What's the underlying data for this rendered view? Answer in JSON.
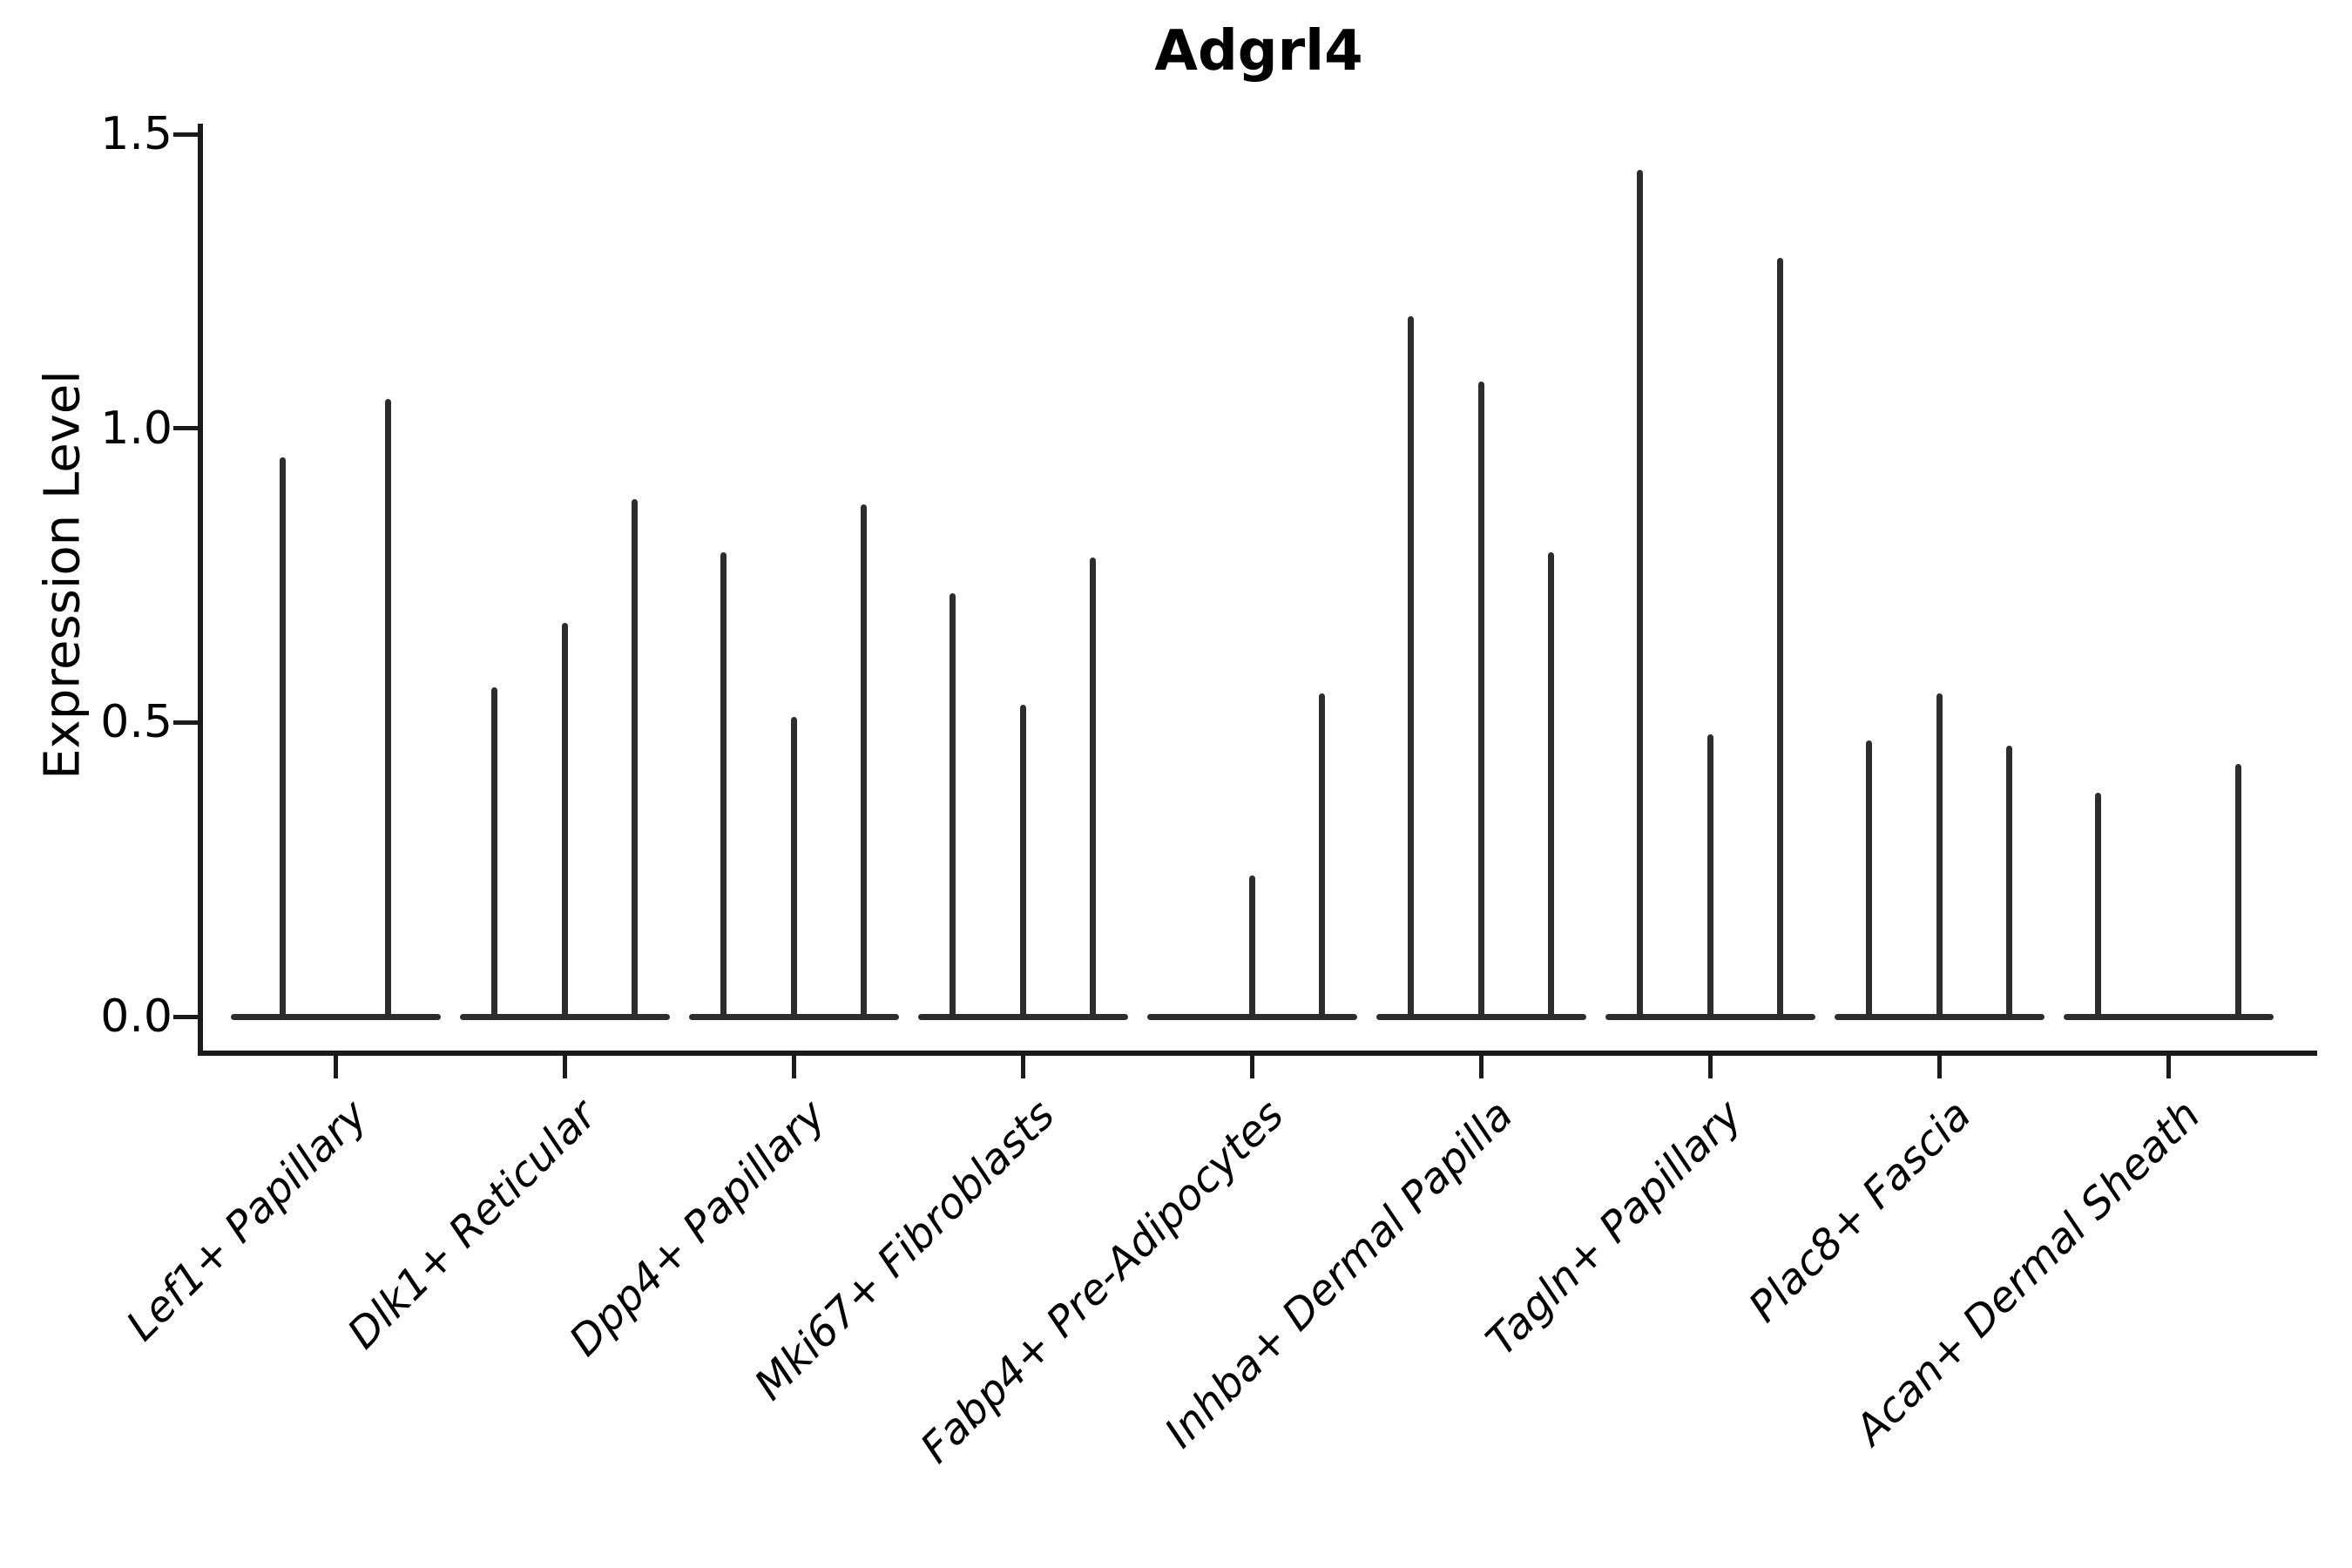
{
  "chart_data": {
    "type": "violin",
    "title": "Adgrl4",
    "ylabel": "Expression Level",
    "ylim": [
      0,
      1.5
    ],
    "yticks": [
      0.0,
      0.5,
      1.0,
      1.5
    ],
    "grid": "off",
    "legend": "none",
    "axis_color": "#1a1a1a",
    "violin_color": "#2d2d2d",
    "categories": [
      "Lef1+ Papillary",
      "Dlk1+ Reticular",
      "Dpp4+ Papillary",
      "Mki67+ Fibroblasts",
      "Fabp4+ Pre-Adipocytes",
      "Inhba+ Dermal Papilla",
      "Tagln+ Papillary",
      "Plac8+ Fascia",
      "Acan+ Dermal Sheath"
    ],
    "groups": [
      {
        "label": "Lef1+ Papillary",
        "violin_peaks": [
          0.95,
          1.05
        ]
      },
      {
        "label": "Dlk1+ Reticular",
        "violin_peaks": [
          0.56,
          0.67,
          0.88
        ]
      },
      {
        "label": "Dpp4+ Papillary",
        "violin_peaks": [
          0.79,
          0.51,
          0.87
        ]
      },
      {
        "label": "Mki67+ Fibroblasts",
        "violin_peaks": [
          0.72,
          0.53,
          0.78
        ]
      },
      {
        "label": "Fabp4+ Pre-Adipocytes",
        "violin_peaks": [
          0.0,
          0.24,
          0.55
        ]
      },
      {
        "label": "Inhba+ Dermal Papilla",
        "violin_peaks": [
          1.19,
          1.08,
          0.79
        ]
      },
      {
        "label": "Tagln+ Papillary",
        "violin_peaks": [
          1.44,
          0.48,
          1.29
        ]
      },
      {
        "label": "Plac8+ Fascia",
        "violin_peaks": [
          0.47,
          0.55,
          0.46
        ]
      },
      {
        "label": "Acan+ Dermal Sheath",
        "violin_peaks": [
          0.38,
          0.0,
          0.43
        ]
      }
    ]
  }
}
